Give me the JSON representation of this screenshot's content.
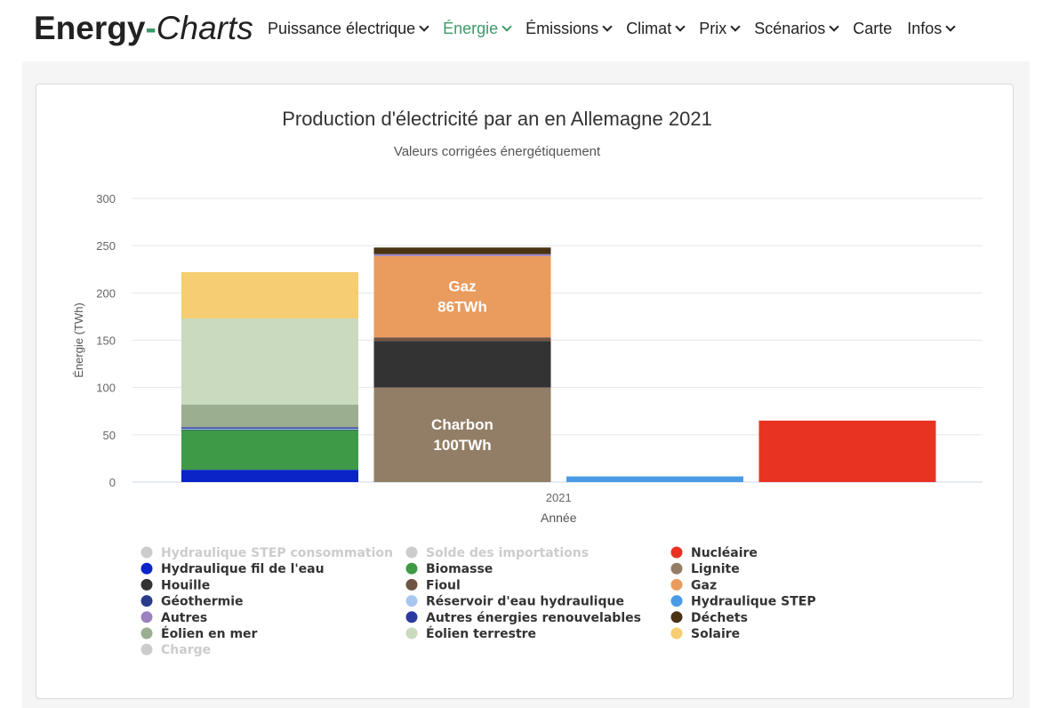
{
  "brand": {
    "bold": "Energy",
    "dash": "-",
    "italic": "Charts"
  },
  "nav": [
    {
      "label": "Puissance électrique",
      "dropdown": true,
      "active": false
    },
    {
      "label": "Énergie",
      "dropdown": true,
      "active": true
    },
    {
      "label": "Émissions",
      "dropdown": true,
      "active": false
    },
    {
      "label": "Climat",
      "dropdown": true,
      "active": false
    },
    {
      "label": "Prix",
      "dropdown": true,
      "active": false
    },
    {
      "label": "Scénarios",
      "dropdown": true,
      "active": false
    },
    {
      "label": "Carte",
      "dropdown": false,
      "active": false
    },
    {
      "label": "Infos",
      "dropdown": true,
      "active": false
    }
  ],
  "chart_data": {
    "type": "bar",
    "title": "Production d'électricité par an en Allemagne 2021",
    "subtitle": "Valeurs corrigées énergétiquement",
    "xlabel": "Année",
    "ylabel": "Énergie (TWh)",
    "category": "2021",
    "ylim": [
      0,
      300
    ],
    "yticks": [
      0,
      50,
      100,
      150,
      200,
      250,
      300
    ],
    "grid": true,
    "legend_position": "bottom",
    "stacks": [
      {
        "name": "renouvelables",
        "segments": [
          {
            "name": "Hydraulique fil de l'eau",
            "value": 13
          },
          {
            "name": "Biomasse",
            "value": 42
          },
          {
            "name": "Géothermie",
            "value": 0.5
          },
          {
            "name": "Réservoir d'eau hydraulique",
            "value": 1
          },
          {
            "name": "Autres énergies renouvelables",
            "value": 1.5
          },
          {
            "name": "Éolien en mer",
            "value": 24
          },
          {
            "name": "Éolien terrestre",
            "value": 91
          },
          {
            "name": "Solaire",
            "value": 49
          }
        ]
      },
      {
        "name": "fossiles",
        "segments": [
          {
            "name": "Lignite",
            "value": 100
          },
          {
            "name": "Houille",
            "value": 49
          },
          {
            "name": "Fioul",
            "value": 4
          },
          {
            "name": "Gaz",
            "value": 86
          },
          {
            "name": "Autres",
            "value": 2
          },
          {
            "name": "Déchets",
            "value": 7
          }
        ]
      },
      {
        "name": "stockage",
        "segments": [
          {
            "name": "Hydraulique STEP",
            "value": 6
          }
        ]
      },
      {
        "name": "nucleaire",
        "segments": [
          {
            "name": "Nucléaire",
            "value": 65
          }
        ]
      }
    ],
    "data_labels": [
      {
        "series": "Gaz",
        "lines": [
          "Gaz",
          "86TWh"
        ]
      },
      {
        "series": "Lignite",
        "lines": [
          "Charbon",
          "100TWh"
        ]
      }
    ],
    "legend": [
      {
        "name": "Hydraulique STEP consommation",
        "color": "#cccccc",
        "hidden": true
      },
      {
        "name": "Solde des importations",
        "color": "#cccccc",
        "hidden": true
      },
      {
        "name": "Nucléaire",
        "color": "#e83323",
        "hidden": false
      },
      {
        "name": "Hydraulique fil de l'eau",
        "color": "#0a24c8",
        "hidden": false
      },
      {
        "name": "Biomasse",
        "color": "#3e9a46",
        "hidden": false
      },
      {
        "name": "Lignite",
        "color": "#927e66",
        "hidden": false
      },
      {
        "name": "Houille",
        "color": "#333333",
        "hidden": false
      },
      {
        "name": "Fioul",
        "color": "#6f5444",
        "hidden": false
      },
      {
        "name": "Gaz",
        "color": "#ea9b5e",
        "hidden": false
      },
      {
        "name": "Géothermie",
        "color": "#283c8c",
        "hidden": false
      },
      {
        "name": "Réservoir d'eau hydraulique",
        "color": "#a9c6f0",
        "hidden": false
      },
      {
        "name": "Hydraulique STEP",
        "color": "#4a9be6",
        "hidden": false
      },
      {
        "name": "Autres",
        "color": "#9a82c0",
        "hidden": false
      },
      {
        "name": "Autres énergies renouvelables",
        "color": "#2a3a9e",
        "hidden": false
      },
      {
        "name": "Déchets",
        "color": "#4a3214",
        "hidden": false
      },
      {
        "name": "Éolien en mer",
        "color": "#9cae90",
        "hidden": false
      },
      {
        "name": "Éolien terrestre",
        "color": "#c9dabe",
        "hidden": false
      },
      {
        "name": "Solaire",
        "color": "#f6cd72",
        "hidden": false
      },
      {
        "name": "Charge",
        "color": "#cccccc",
        "hidden": true
      }
    ]
  }
}
